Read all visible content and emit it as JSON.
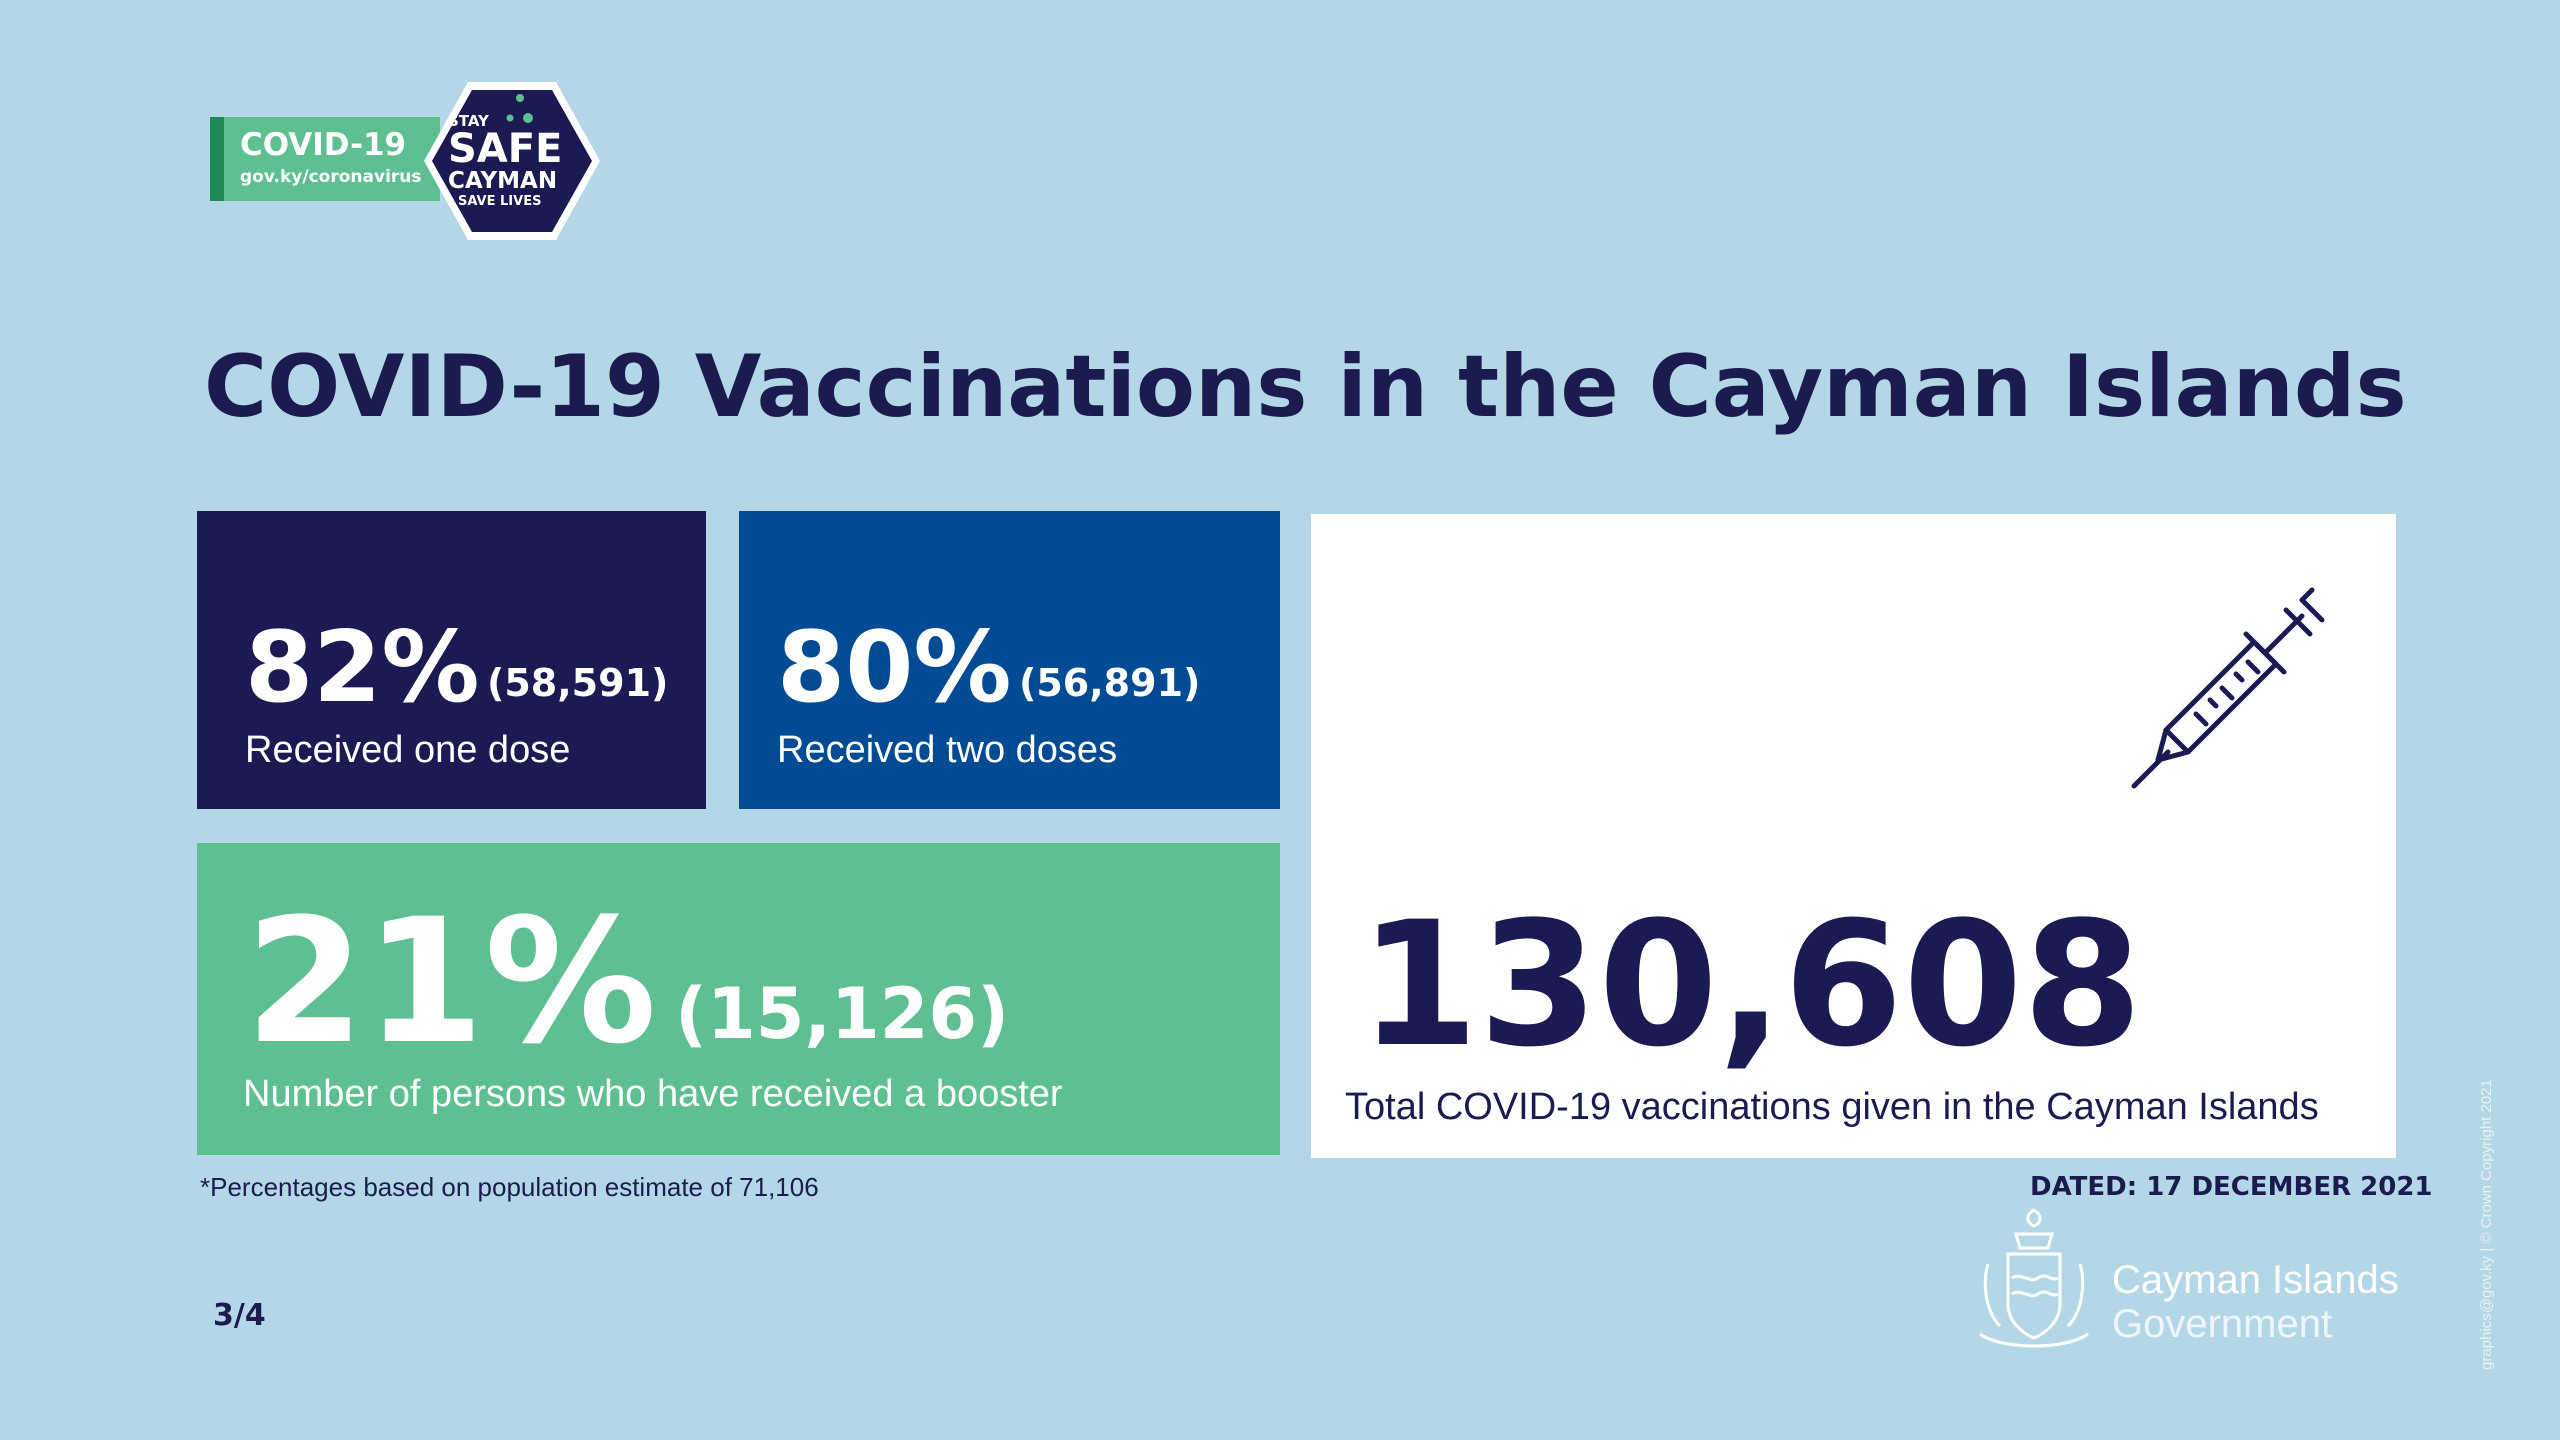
{
  "logo": {
    "covid_label": "COVID-19",
    "url": "gov.ky/coronavirus",
    "stay": "STAY",
    "safe": "SAFE",
    "cayman": "CAYMAN",
    "save_lives": "SAVE LIVES"
  },
  "title": "COVID-19 Vaccinations in the Cayman Islands",
  "one_dose": {
    "percent": "82%",
    "count": "(58,591)",
    "label": "Received one dose"
  },
  "two_doses": {
    "percent": "80%",
    "count": "(56,891)",
    "label": "Received two doses"
  },
  "booster": {
    "percent": "21%",
    "count": "(15,126)",
    "label": "Number of persons who have received a booster"
  },
  "total": {
    "value": "130,608",
    "label": "Total COVID-19 vaccinations given in the Cayman Islands",
    "icon": "syringe-icon"
  },
  "footnote": "*Percentages based on population estimate of 71,106",
  "dated": "DATED: 17 DECEMBER 2021",
  "page": "3/4",
  "government": {
    "line1": "Cayman Islands",
    "line2": "Government"
  },
  "credit": "graphics@gov.ky | © Crown Copyright 2021",
  "colors": {
    "background": "#b4d7e7",
    "navy": "#1c1a52",
    "blue": "#004b94",
    "green": "#5ebf91",
    "white": "#ffffff"
  }
}
